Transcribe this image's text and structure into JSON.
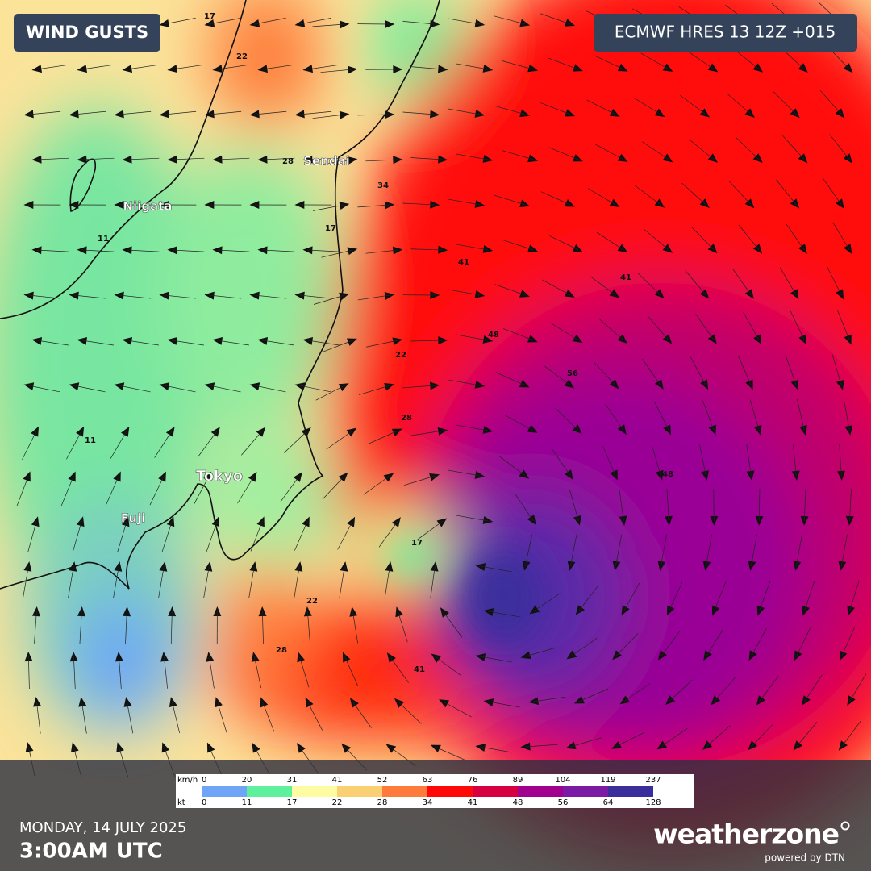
{
  "header": {
    "title": "WIND GUSTS",
    "model": "ECMWF HRES 13 12Z +015"
  },
  "map": {
    "cities": [
      "Sendai",
      "Niigata",
      "Tokyo",
      "Fuji"
    ],
    "contour_labels": [
      "17",
      "22",
      "28",
      "34",
      "41",
      "48",
      "56",
      "11",
      "17",
      "22",
      "28",
      "41",
      "48",
      "28",
      "22",
      "17",
      "11",
      "41"
    ]
  },
  "legend": {
    "unit_top": "km/h",
    "unit_bottom": "kt",
    "kmh": [
      "0",
      "20",
      "31",
      "41",
      "52",
      "63",
      "76",
      "89",
      "104",
      "119",
      "237"
    ],
    "kt": [
      "0",
      "11",
      "17",
      "22",
      "28",
      "34",
      "41",
      "48",
      "56",
      "64",
      "128"
    ],
    "colors": [
      "#6ea5f7",
      "#5ef09c",
      "#fdfca2",
      "#fbd073",
      "#ff7b3b",
      "#ff0808",
      "#d60040",
      "#a1008e",
      "#7b1aa5",
      "#3b2d9c"
    ]
  },
  "footer": {
    "date": "MONDAY, 14 JULY 2025",
    "time": "3:00AM UTC",
    "brand": "weatherzone",
    "powered": "powered by DTN"
  }
}
